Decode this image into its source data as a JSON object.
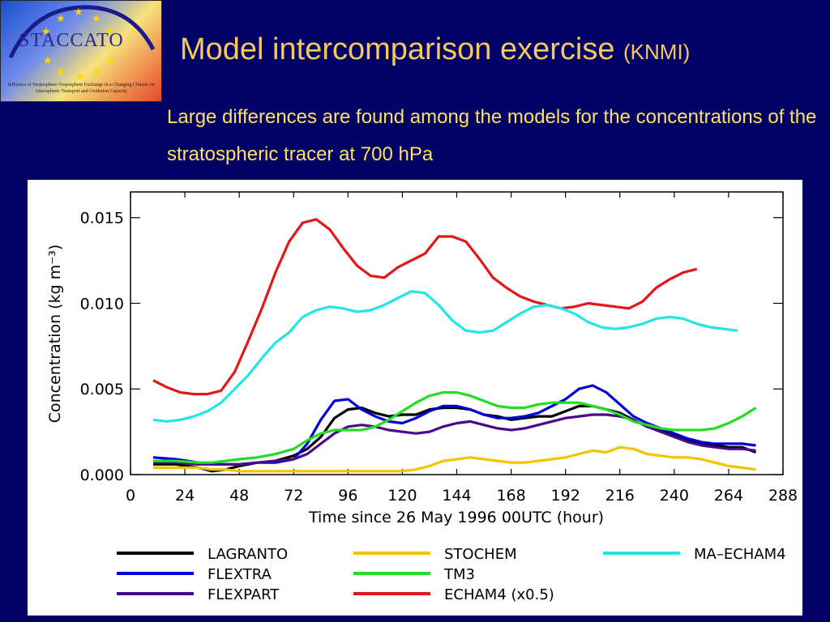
{
  "logo": {
    "name": "STACCATO",
    "subtitle": "Influence of Stratosphere-Troposphere Exchange in a Changing Climate on Atmospheric Transport and Oxidation Capacity"
  },
  "slide": {
    "title": "Model intercomparison exercise",
    "title_suffix": "(KNMI)",
    "subtitle": "Large differences are found among the models for the concentrations of the stratospheric tracer at 700 hPa"
  },
  "chart_data": {
    "type": "line",
    "xlabel": "Time since 26 May 1996 00UTC (hour)",
    "ylabel": "Concentration (kg m⁻³)",
    "xlim": [
      0,
      288
    ],
    "ylim": [
      0,
      0.0165
    ],
    "xticks": [
      0,
      24,
      48,
      72,
      96,
      120,
      144,
      168,
      192,
      216,
      240,
      264,
      288
    ],
    "yticks": [
      "0.000",
      "0.005",
      "0.010",
      "0.015"
    ],
    "ytick_values": [
      0,
      0.005,
      0.01,
      0.015
    ],
    "grid": false,
    "legend_position": "bottom",
    "series": [
      {
        "name": "LAGRANTO",
        "color": "#000000",
        "x": [
          10,
          20,
          30,
          36,
          42,
          48,
          56,
          64,
          72,
          78,
          84,
          90,
          96,
          102,
          108,
          114,
          120,
          126,
          132,
          138,
          144,
          150,
          156,
          162,
          168,
          174,
          180,
          186,
          192,
          198,
          204,
          210,
          216,
          222,
          228,
          234,
          240,
          246,
          252,
          258,
          264,
          270,
          276
        ],
        "y": [
          0.0006,
          0.0006,
          0.0004,
          0.0002,
          0.0003,
          0.0005,
          0.0007,
          0.0008,
          0.0011,
          0.0015,
          0.0022,
          0.0033,
          0.0038,
          0.0039,
          0.0036,
          0.0034,
          0.0035,
          0.0035,
          0.0038,
          0.0039,
          0.0039,
          0.0038,
          0.0035,
          0.0034,
          0.0032,
          0.0033,
          0.0034,
          0.0034,
          0.0037,
          0.004,
          0.004,
          0.0038,
          0.0036,
          0.0032,
          0.0028,
          0.0026,
          0.0023,
          0.002,
          0.0018,
          0.0017,
          0.0016,
          0.0016,
          0.0013
        ]
      },
      {
        "name": "FLEXTRA",
        "color": "#0000d8",
        "x": [
          10,
          20,
          30,
          36,
          42,
          48,
          56,
          64,
          72,
          78,
          84,
          90,
          96,
          102,
          108,
          114,
          120,
          126,
          132,
          138,
          144,
          150,
          156,
          162,
          168,
          174,
          180,
          186,
          192,
          198,
          204,
          210,
          216,
          222,
          228,
          234,
          240,
          246,
          252,
          258,
          264,
          270,
          276
        ],
        "y": [
          0.001,
          0.0009,
          0.0007,
          0.0006,
          0.0006,
          0.0006,
          0.0007,
          0.0007,
          0.0009,
          0.0018,
          0.0032,
          0.0043,
          0.0044,
          0.0038,
          0.0034,
          0.0031,
          0.003,
          0.0033,
          0.0037,
          0.004,
          0.004,
          0.0038,
          0.0035,
          0.0033,
          0.0033,
          0.0034,
          0.0036,
          0.004,
          0.0044,
          0.005,
          0.0052,
          0.0048,
          0.0041,
          0.0034,
          0.003,
          0.0027,
          0.0024,
          0.0021,
          0.0019,
          0.0018,
          0.0018,
          0.0018,
          0.0017
        ]
      },
      {
        "name": "FLEXPART",
        "color": "#4b0a8c",
        "x": [
          10,
          20,
          30,
          36,
          42,
          48,
          56,
          64,
          72,
          78,
          84,
          90,
          96,
          102,
          108,
          114,
          120,
          126,
          132,
          138,
          144,
          150,
          156,
          162,
          168,
          174,
          180,
          186,
          192,
          198,
          204,
          210,
          216,
          222,
          228,
          234,
          240,
          246,
          252,
          258,
          264,
          270,
          276
        ],
        "y": [
          0.0007,
          0.0007,
          0.0006,
          0.0006,
          0.0006,
          0.0006,
          0.0007,
          0.0008,
          0.0009,
          0.0012,
          0.0018,
          0.0024,
          0.0028,
          0.0029,
          0.0028,
          0.0026,
          0.0025,
          0.0024,
          0.0025,
          0.0028,
          0.003,
          0.0031,
          0.0029,
          0.0027,
          0.0026,
          0.0027,
          0.0029,
          0.0031,
          0.0033,
          0.0034,
          0.0035,
          0.0035,
          0.0034,
          0.0032,
          0.0028,
          0.0025,
          0.0022,
          0.0019,
          0.0017,
          0.0016,
          0.0015,
          0.0015,
          0.0014
        ]
      },
      {
        "name": "STOCHEM",
        "color": "#f5c300",
        "x": [
          10,
          20,
          30,
          36,
          42,
          48,
          56,
          64,
          72,
          78,
          84,
          90,
          96,
          102,
          108,
          114,
          120,
          126,
          132,
          138,
          144,
          150,
          156,
          162,
          168,
          174,
          180,
          186,
          192,
          198,
          204,
          210,
          216,
          222,
          228,
          234,
          240,
          246,
          252,
          258,
          264,
          270,
          276
        ],
        "y": [
          0.0004,
          0.0004,
          0.0004,
          0.0003,
          0.0003,
          0.0002,
          0.0002,
          0.0002,
          0.0002,
          0.0002,
          0.0002,
          0.0002,
          0.0002,
          0.0002,
          0.0002,
          0.0002,
          0.0002,
          0.0003,
          0.0005,
          0.0008,
          0.0009,
          0.001,
          0.0009,
          0.0008,
          0.0007,
          0.0007,
          0.0008,
          0.0009,
          0.001,
          0.0012,
          0.0014,
          0.0013,
          0.0016,
          0.0015,
          0.0012,
          0.0011,
          0.001,
          0.001,
          0.0009,
          0.0007,
          0.0005,
          0.0004,
          0.0003
        ]
      },
      {
        "name": "TM3",
        "color": "#22dd22",
        "x": [
          10,
          20,
          30,
          36,
          42,
          48,
          56,
          64,
          72,
          78,
          84,
          90,
          96,
          102,
          108,
          114,
          120,
          126,
          132,
          138,
          144,
          150,
          156,
          162,
          168,
          174,
          180,
          186,
          192,
          198,
          204,
          210,
          216,
          222,
          228,
          234,
          240,
          246,
          252,
          258,
          264,
          270,
          276
        ],
        "y": [
          0.0008,
          0.0008,
          0.0007,
          0.0007,
          0.0008,
          0.0009,
          0.001,
          0.0012,
          0.0015,
          0.002,
          0.0024,
          0.0026,
          0.0026,
          0.0026,
          0.0028,
          0.0032,
          0.0037,
          0.0042,
          0.0046,
          0.0048,
          0.0048,
          0.0046,
          0.0043,
          0.004,
          0.0039,
          0.0039,
          0.0041,
          0.0042,
          0.0042,
          0.0042,
          0.004,
          0.0038,
          0.0035,
          0.0031,
          0.0029,
          0.0027,
          0.0026,
          0.0026,
          0.0026,
          0.0027,
          0.003,
          0.0034,
          0.0039
        ]
      },
      {
        "name": "ECHAM4 (x0.5)",
        "color": "#e21818",
        "x": [
          10,
          16,
          22,
          28,
          34,
          40,
          46,
          52,
          58,
          64,
          70,
          76,
          82,
          88,
          94,
          100,
          106,
          112,
          118,
          124,
          130,
          136,
          142,
          148,
          154,
          160,
          166,
          172,
          178,
          184,
          190,
          196,
          202,
          208,
          214,
          220,
          226,
          232,
          238,
          244,
          250
        ],
        "y": [
          0.0055,
          0.0051,
          0.0048,
          0.0047,
          0.0047,
          0.0049,
          0.006,
          0.0078,
          0.0097,
          0.0118,
          0.0136,
          0.0147,
          0.0149,
          0.0143,
          0.0132,
          0.0122,
          0.0116,
          0.0115,
          0.0121,
          0.0125,
          0.0129,
          0.0139,
          0.0139,
          0.0136,
          0.0126,
          0.0115,
          0.0109,
          0.0104,
          0.0101,
          0.0099,
          0.0097,
          0.0098,
          0.01,
          0.0099,
          0.0098,
          0.0097,
          0.0101,
          0.0109,
          0.0114,
          0.0118,
          0.012
        ]
      },
      {
        "name": "MA–ECHAM4",
        "color": "#22e6e6",
        "x": [
          10,
          16,
          22,
          28,
          34,
          40,
          46,
          52,
          58,
          64,
          70,
          76,
          82,
          88,
          94,
          100,
          106,
          112,
          118,
          124,
          130,
          136,
          142,
          148,
          154,
          160,
          166,
          172,
          178,
          184,
          190,
          196,
          202,
          208,
          214,
          220,
          226,
          232,
          238,
          244,
          250,
          256,
          262,
          268
        ],
        "y": [
          0.0032,
          0.0031,
          0.0032,
          0.0034,
          0.0037,
          0.0042,
          0.005,
          0.0058,
          0.0068,
          0.0077,
          0.0083,
          0.0092,
          0.0096,
          0.0098,
          0.0097,
          0.0095,
          0.0096,
          0.0099,
          0.0103,
          0.0107,
          0.0106,
          0.0099,
          0.009,
          0.0084,
          0.0083,
          0.0084,
          0.0089,
          0.0094,
          0.0098,
          0.0099,
          0.0097,
          0.0094,
          0.0089,
          0.0086,
          0.0085,
          0.0086,
          0.0088,
          0.0091,
          0.0092,
          0.0091,
          0.0088,
          0.0086,
          0.0085,
          0.0084
        ]
      }
    ]
  }
}
